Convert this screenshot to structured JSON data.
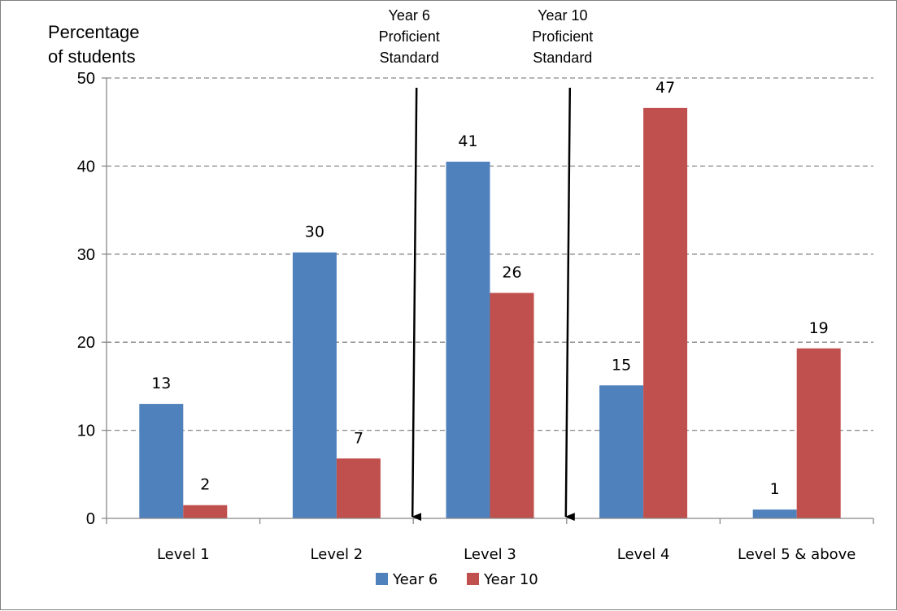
{
  "chart_data": {
    "type": "bar",
    "ylabel_lines": [
      "Percentage",
      "of students"
    ],
    "categories": [
      "Level 1",
      "Level 2",
      "Level 3",
      "Level 4",
      "Level 5 & above"
    ],
    "series": [
      {
        "name": "Year 6",
        "color": "#4f81bd",
        "values": [
          13,
          30.2,
          40.5,
          15.1,
          1
        ],
        "labels": [
          "13",
          "30",
          "41",
          "15",
          "1"
        ]
      },
      {
        "name": "Year 10",
        "color": "#c0504d",
        "values": [
          1.5,
          6.8,
          25.6,
          46.6,
          19.3
        ],
        "labels": [
          "2",
          "7",
          "26",
          "47",
          "19"
        ]
      }
    ],
    "ylim": [
      0,
      50
    ],
    "yticks": [
      0,
      10,
      20,
      30,
      40,
      50
    ],
    "grid": true,
    "legend_position": "bottom",
    "annotations": [
      {
        "lines": [
          "Year 6",
          "Proficient",
          "Standard"
        ],
        "between": [
          1,
          2
        ]
      },
      {
        "lines": [
          "Year 10",
          "Proficient",
          "Standard"
        ],
        "between": [
          2,
          3
        ]
      }
    ]
  }
}
